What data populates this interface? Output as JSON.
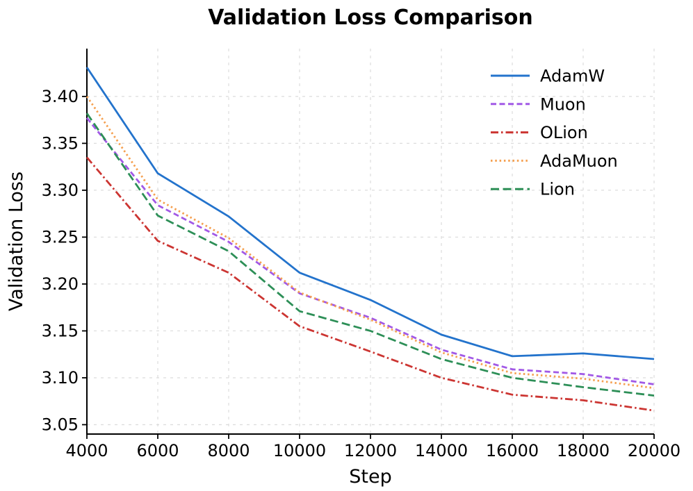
{
  "chart_data": {
    "type": "line",
    "title": "Validation Loss Comparison",
    "xlabel": "Step",
    "ylabel": "Validation Loss",
    "xlim": [
      4000,
      20000
    ],
    "ylim": [
      3.04,
      3.451
    ],
    "grid": true,
    "grid_color": "#dcdcdc",
    "legend_position": "upper right",
    "x": [
      4000,
      6000,
      8000,
      10000,
      12000,
      14000,
      16000,
      18000,
      20000
    ],
    "xtick_labels": [
      "4000",
      "6000",
      "8000",
      "10000",
      "12000",
      "14000",
      "16000",
      "18000",
      "20000"
    ],
    "ytick_values": [
      3.05,
      3.1,
      3.15,
      3.2,
      3.25,
      3.3,
      3.35,
      3.4
    ],
    "ytick_labels": [
      "3.05",
      "3.10",
      "3.15",
      "3.20",
      "3.25",
      "3.30",
      "3.35",
      "3.40"
    ],
    "series": [
      {
        "name": "AdamW",
        "color": "#2373cc",
        "linestyle": "solid",
        "values": [
          3.431,
          3.318,
          3.272,
          3.212,
          3.183,
          3.146,
          3.123,
          3.126,
          3.12
        ]
      },
      {
        "name": "Muon",
        "color": "#a259e6",
        "linestyle": "dashed",
        "values": [
          3.377,
          3.284,
          3.245,
          3.19,
          3.164,
          3.13,
          3.109,
          3.104,
          3.093
        ]
      },
      {
        "name": "OLion",
        "color": "#cc3532",
        "linestyle": "dashdot",
        "values": [
          3.335,
          3.246,
          3.212,
          3.155,
          3.128,
          3.1,
          3.082,
          3.076,
          3.065
        ]
      },
      {
        "name": "AdaMuon",
        "color": "#f5a050",
        "linestyle": "dotted",
        "values": [
          3.4,
          3.29,
          3.249,
          3.191,
          3.162,
          3.127,
          3.105,
          3.099,
          3.089
        ]
      },
      {
        "name": "Lion",
        "color": "#2d8f57",
        "linestyle": "dashed-long",
        "values": [
          3.382,
          3.273,
          3.235,
          3.171,
          3.15,
          3.12,
          3.1,
          3.09,
          3.081
        ]
      }
    ]
  }
}
